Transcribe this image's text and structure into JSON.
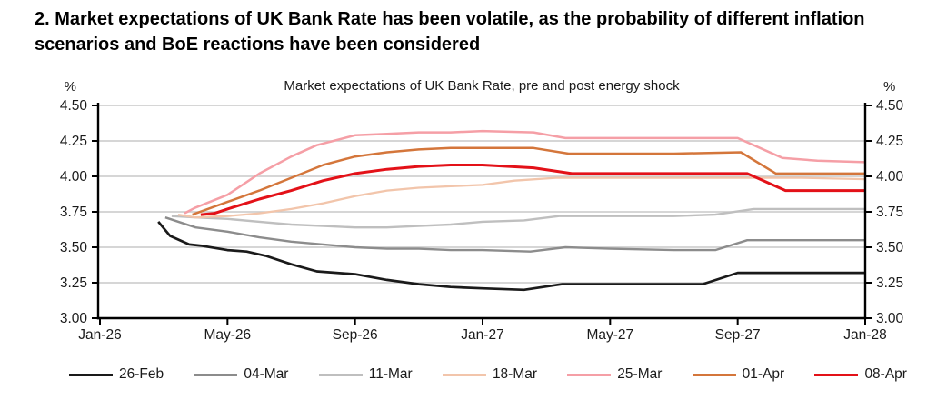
{
  "heading": "2. Market expectations of UK Bank Rate has been volatile, as the probability of different inflation scenarios and BoE reactions have been considered",
  "chart_data": {
    "type": "line",
    "title": "Market expectations of UK Bank Rate, pre and post energy shock",
    "ylabel": "%",
    "xlabel": "",
    "grid": "horizontal",
    "legend_position": "bottom",
    "y_axis": {
      "unit_label": "%",
      "min": 3.0,
      "max": 4.5,
      "ticks": [
        {
          "value": 3.0,
          "label": "3.00"
        },
        {
          "value": 3.25,
          "label": "3.25"
        },
        {
          "value": 3.5,
          "label": "3.50"
        },
        {
          "value": 3.75,
          "label": "3.75"
        },
        {
          "value": 4.0,
          "label": "4.00"
        },
        {
          "value": 4.25,
          "label": "4.25"
        },
        {
          "value": 4.5,
          "label": "4.50"
        }
      ],
      "sides": [
        "left",
        "right"
      ]
    },
    "x_axis": {
      "unit": "months_after_Jan26",
      "range_months": [
        0,
        24
      ],
      "ticks": [
        {
          "month": 0,
          "label": "Jan-26"
        },
        {
          "month": 4,
          "label": "May-26"
        },
        {
          "month": 8,
          "label": "Sep-26"
        },
        {
          "month": 12,
          "label": "Jan-27"
        },
        {
          "month": 16,
          "label": "May-27"
        },
        {
          "month": 20,
          "label": "Sep-27"
        },
        {
          "month": 24,
          "label": "Jan-28"
        }
      ]
    },
    "series": [
      {
        "name": "26-Feb",
        "color": "#1a1a1a",
        "width": 2.7,
        "points": [
          [
            1.83,
            3.68
          ],
          [
            2.2,
            3.58
          ],
          [
            2.8,
            3.52
          ],
          [
            3.2,
            3.51
          ],
          [
            4,
            3.48
          ],
          [
            4.6,
            3.47
          ],
          [
            5.2,
            3.44
          ],
          [
            6,
            3.38
          ],
          [
            6.8,
            3.33
          ],
          [
            8,
            3.31
          ],
          [
            9,
            3.27
          ],
          [
            10,
            3.24
          ],
          [
            11,
            3.22
          ],
          [
            12,
            3.21
          ],
          [
            13.3,
            3.2
          ],
          [
            14.5,
            3.24
          ],
          [
            16,
            3.24
          ],
          [
            18,
            3.24
          ],
          [
            18.9,
            3.24
          ],
          [
            20,
            3.32
          ],
          [
            22,
            3.32
          ],
          [
            24,
            3.32
          ]
        ]
      },
      {
        "name": "04-Mar",
        "color": "#8c8c8c",
        "width": 2.4,
        "points": [
          [
            2.05,
            3.71
          ],
          [
            3,
            3.64
          ],
          [
            4,
            3.61
          ],
          [
            5,
            3.57
          ],
          [
            6,
            3.54
          ],
          [
            7,
            3.52
          ],
          [
            8,
            3.5
          ],
          [
            9,
            3.49
          ],
          [
            10,
            3.49
          ],
          [
            11,
            3.48
          ],
          [
            12,
            3.48
          ],
          [
            13.5,
            3.47
          ],
          [
            14.6,
            3.5
          ],
          [
            16,
            3.49
          ],
          [
            18,
            3.48
          ],
          [
            19.3,
            3.48
          ],
          [
            20.3,
            3.55
          ],
          [
            22,
            3.55
          ],
          [
            24,
            3.55
          ]
        ]
      },
      {
        "name": "11-Mar",
        "color": "#bfbfbf",
        "width": 2.4,
        "points": [
          [
            2.25,
            3.72
          ],
          [
            3,
            3.71
          ],
          [
            4,
            3.7
          ],
          [
            5,
            3.68
          ],
          [
            6,
            3.66
          ],
          [
            7,
            3.65
          ],
          [
            8,
            3.64
          ],
          [
            9,
            3.64
          ],
          [
            10,
            3.65
          ],
          [
            11,
            3.66
          ],
          [
            12,
            3.68
          ],
          [
            13.3,
            3.69
          ],
          [
            14.4,
            3.72
          ],
          [
            16,
            3.72
          ],
          [
            18,
            3.72
          ],
          [
            19.3,
            3.73
          ],
          [
            20.5,
            3.77
          ],
          [
            22,
            3.77
          ],
          [
            24,
            3.77
          ]
        ]
      },
      {
        "name": "18-Mar",
        "color": "#f2c5ab",
        "width": 2.3,
        "points": [
          [
            2.45,
            3.73
          ],
          [
            3,
            3.71
          ],
          [
            4,
            3.72
          ],
          [
            5,
            3.74
          ],
          [
            6,
            3.77
          ],
          [
            7,
            3.81
          ],
          [
            8,
            3.86
          ],
          [
            9,
            3.9
          ],
          [
            10,
            3.92
          ],
          [
            11,
            3.93
          ],
          [
            12,
            3.94
          ],
          [
            13,
            3.97
          ],
          [
            14.3,
            3.99
          ],
          [
            16,
            3.99
          ],
          [
            18,
            3.99
          ],
          [
            20,
            3.99
          ],
          [
            22,
            3.99
          ],
          [
            24,
            3.98
          ]
        ]
      },
      {
        "name": "25-Mar",
        "color": "#f59fa6",
        "width": 2.5,
        "points": [
          [
            2.65,
            3.74
          ],
          [
            3,
            3.78
          ],
          [
            4,
            3.87
          ],
          [
            5,
            4.02
          ],
          [
            6,
            4.14
          ],
          [
            6.8,
            4.22
          ],
          [
            8,
            4.29
          ],
          [
            9,
            4.3
          ],
          [
            10,
            4.31
          ],
          [
            11,
            4.31
          ],
          [
            12,
            4.32
          ],
          [
            13.6,
            4.31
          ],
          [
            14.6,
            4.27
          ],
          [
            16,
            4.27
          ],
          [
            18,
            4.27
          ],
          [
            20,
            4.27
          ],
          [
            21.4,
            4.13
          ],
          [
            22.5,
            4.11
          ],
          [
            24,
            4.1
          ]
        ]
      },
      {
        "name": "01-Apr",
        "color": "#d4763b",
        "width": 2.5,
        "points": [
          [
            2.9,
            3.73
          ],
          [
            4,
            3.82
          ],
          [
            5,
            3.9
          ],
          [
            6,
            3.99
          ],
          [
            7,
            4.08
          ],
          [
            7.5,
            4.11
          ],
          [
            8,
            4.14
          ],
          [
            9,
            4.17
          ],
          [
            10,
            4.19
          ],
          [
            11,
            4.2
          ],
          [
            12,
            4.2
          ],
          [
            13.6,
            4.2
          ],
          [
            14.7,
            4.16
          ],
          [
            16,
            4.16
          ],
          [
            18,
            4.16
          ],
          [
            20.1,
            4.17
          ],
          [
            21.2,
            4.02
          ],
          [
            22,
            4.02
          ],
          [
            24,
            4.02
          ]
        ]
      },
      {
        "name": "08-Apr",
        "color": "#e31118",
        "width": 3.0,
        "points": [
          [
            3.16,
            3.73
          ],
          [
            3.6,
            3.74
          ],
          [
            4,
            3.77
          ],
          [
            5,
            3.84
          ],
          [
            6,
            3.9
          ],
          [
            7,
            3.97
          ],
          [
            8,
            4.02
          ],
          [
            9,
            4.05
          ],
          [
            10,
            4.07
          ],
          [
            11,
            4.08
          ],
          [
            12,
            4.08
          ],
          [
            13.6,
            4.06
          ],
          [
            14.8,
            4.02
          ],
          [
            16,
            4.02
          ],
          [
            18,
            4.02
          ],
          [
            20.3,
            4.02
          ],
          [
            21.5,
            3.9
          ],
          [
            22,
            3.9
          ],
          [
            24,
            3.9
          ]
        ]
      }
    ]
  },
  "colors": {
    "grid": "#c9c9c9",
    "axis": "#000000",
    "text": "#1a1a1a",
    "background": "#ffffff"
  }
}
